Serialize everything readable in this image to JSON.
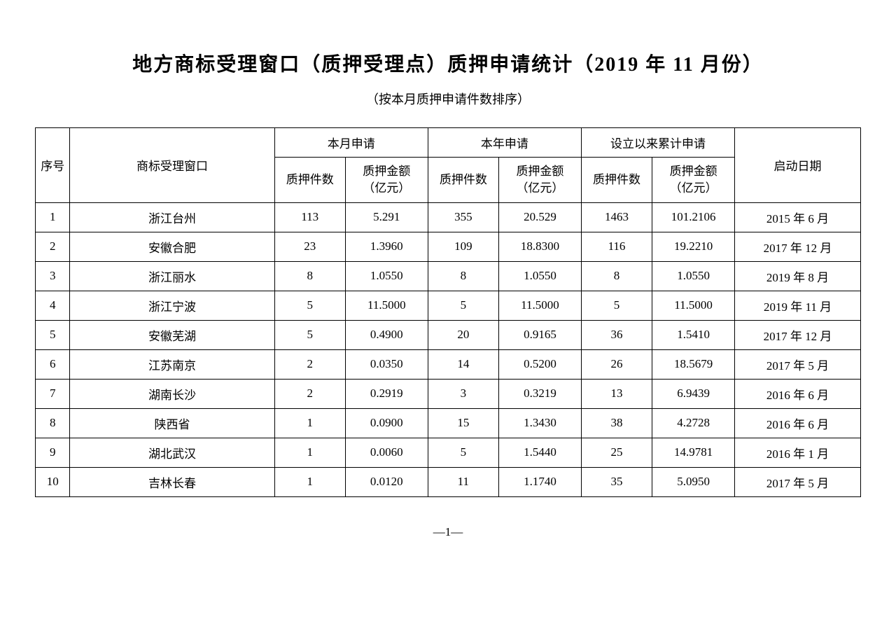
{
  "title": "地方商标受理窗口（质押受理点）质押申请统计（2019 年 11 月份）",
  "subtitle": "（按本月质押申请件数排序）",
  "headers": {
    "seq": "序号",
    "window": "商标受理窗口",
    "month_group": "本月申请",
    "year_group": "本年申请",
    "total_group": "设立以来累计申请",
    "start_date": "启动日期",
    "count": "质押件数",
    "amount_line1": "质押金额",
    "amount_line2": "（亿元）"
  },
  "rows": [
    {
      "seq": "1",
      "window": "浙江台州",
      "m_count": "113",
      "m_amount": "5.291",
      "y_count": "355",
      "y_amount": "20.529",
      "t_count": "1463",
      "t_amount": "101.2106",
      "date": "2015 年 6 月"
    },
    {
      "seq": "2",
      "window": "安徽合肥",
      "m_count": "23",
      "m_amount": "1.3960",
      "y_count": "109",
      "y_amount": "18.8300",
      "t_count": "116",
      "t_amount": "19.2210",
      "date": "2017 年 12 月"
    },
    {
      "seq": "3",
      "window": "浙江丽水",
      "m_count": "8",
      "m_amount": "1.0550",
      "y_count": "8",
      "y_amount": "1.0550",
      "t_count": "8",
      "t_amount": "1.0550",
      "date": "2019 年 8 月"
    },
    {
      "seq": "4",
      "window": "浙江宁波",
      "m_count": "5",
      "m_amount": "11.5000",
      "y_count": "5",
      "y_amount": "11.5000",
      "t_count": "5",
      "t_amount": "11.5000",
      "date": "2019 年 11 月"
    },
    {
      "seq": "5",
      "window": "安徽芜湖",
      "m_count": "5",
      "m_amount": "0.4900",
      "y_count": "20",
      "y_amount": "0.9165",
      "t_count": "36",
      "t_amount": "1.5410",
      "date": "2017 年 12 月"
    },
    {
      "seq": "6",
      "window": "江苏南京",
      "m_count": "2",
      "m_amount": "0.0350",
      "y_count": "14",
      "y_amount": "0.5200",
      "t_count": "26",
      "t_amount": "18.5679",
      "date": "2017 年 5 月"
    },
    {
      "seq": "7",
      "window": "湖南长沙",
      "m_count": "2",
      "m_amount": "0.2919",
      "y_count": "3",
      "y_amount": "0.3219",
      "t_count": "13",
      "t_amount": "6.9439",
      "date": "2016 年 6 月"
    },
    {
      "seq": "8",
      "window": "陕西省",
      "m_count": "1",
      "m_amount": "0.0900",
      "y_count": "15",
      "y_amount": "1.3430",
      "t_count": "38",
      "t_amount": "4.2728",
      "date": "2016 年 6 月"
    },
    {
      "seq": "9",
      "window": "湖北武汉",
      "m_count": "1",
      "m_amount": "0.0060",
      "y_count": "5",
      "y_amount": "1.5440",
      "t_count": "25",
      "t_amount": "14.9781",
      "date": "2016 年 1 月"
    },
    {
      "seq": "10",
      "window": "吉林长春",
      "m_count": "1",
      "m_amount": "0.0120",
      "y_count": "11",
      "y_amount": "1.1740",
      "t_count": "35",
      "t_amount": "5.0950",
      "date": "2017 年 5 月"
    }
  ],
  "page_number": "—1—"
}
